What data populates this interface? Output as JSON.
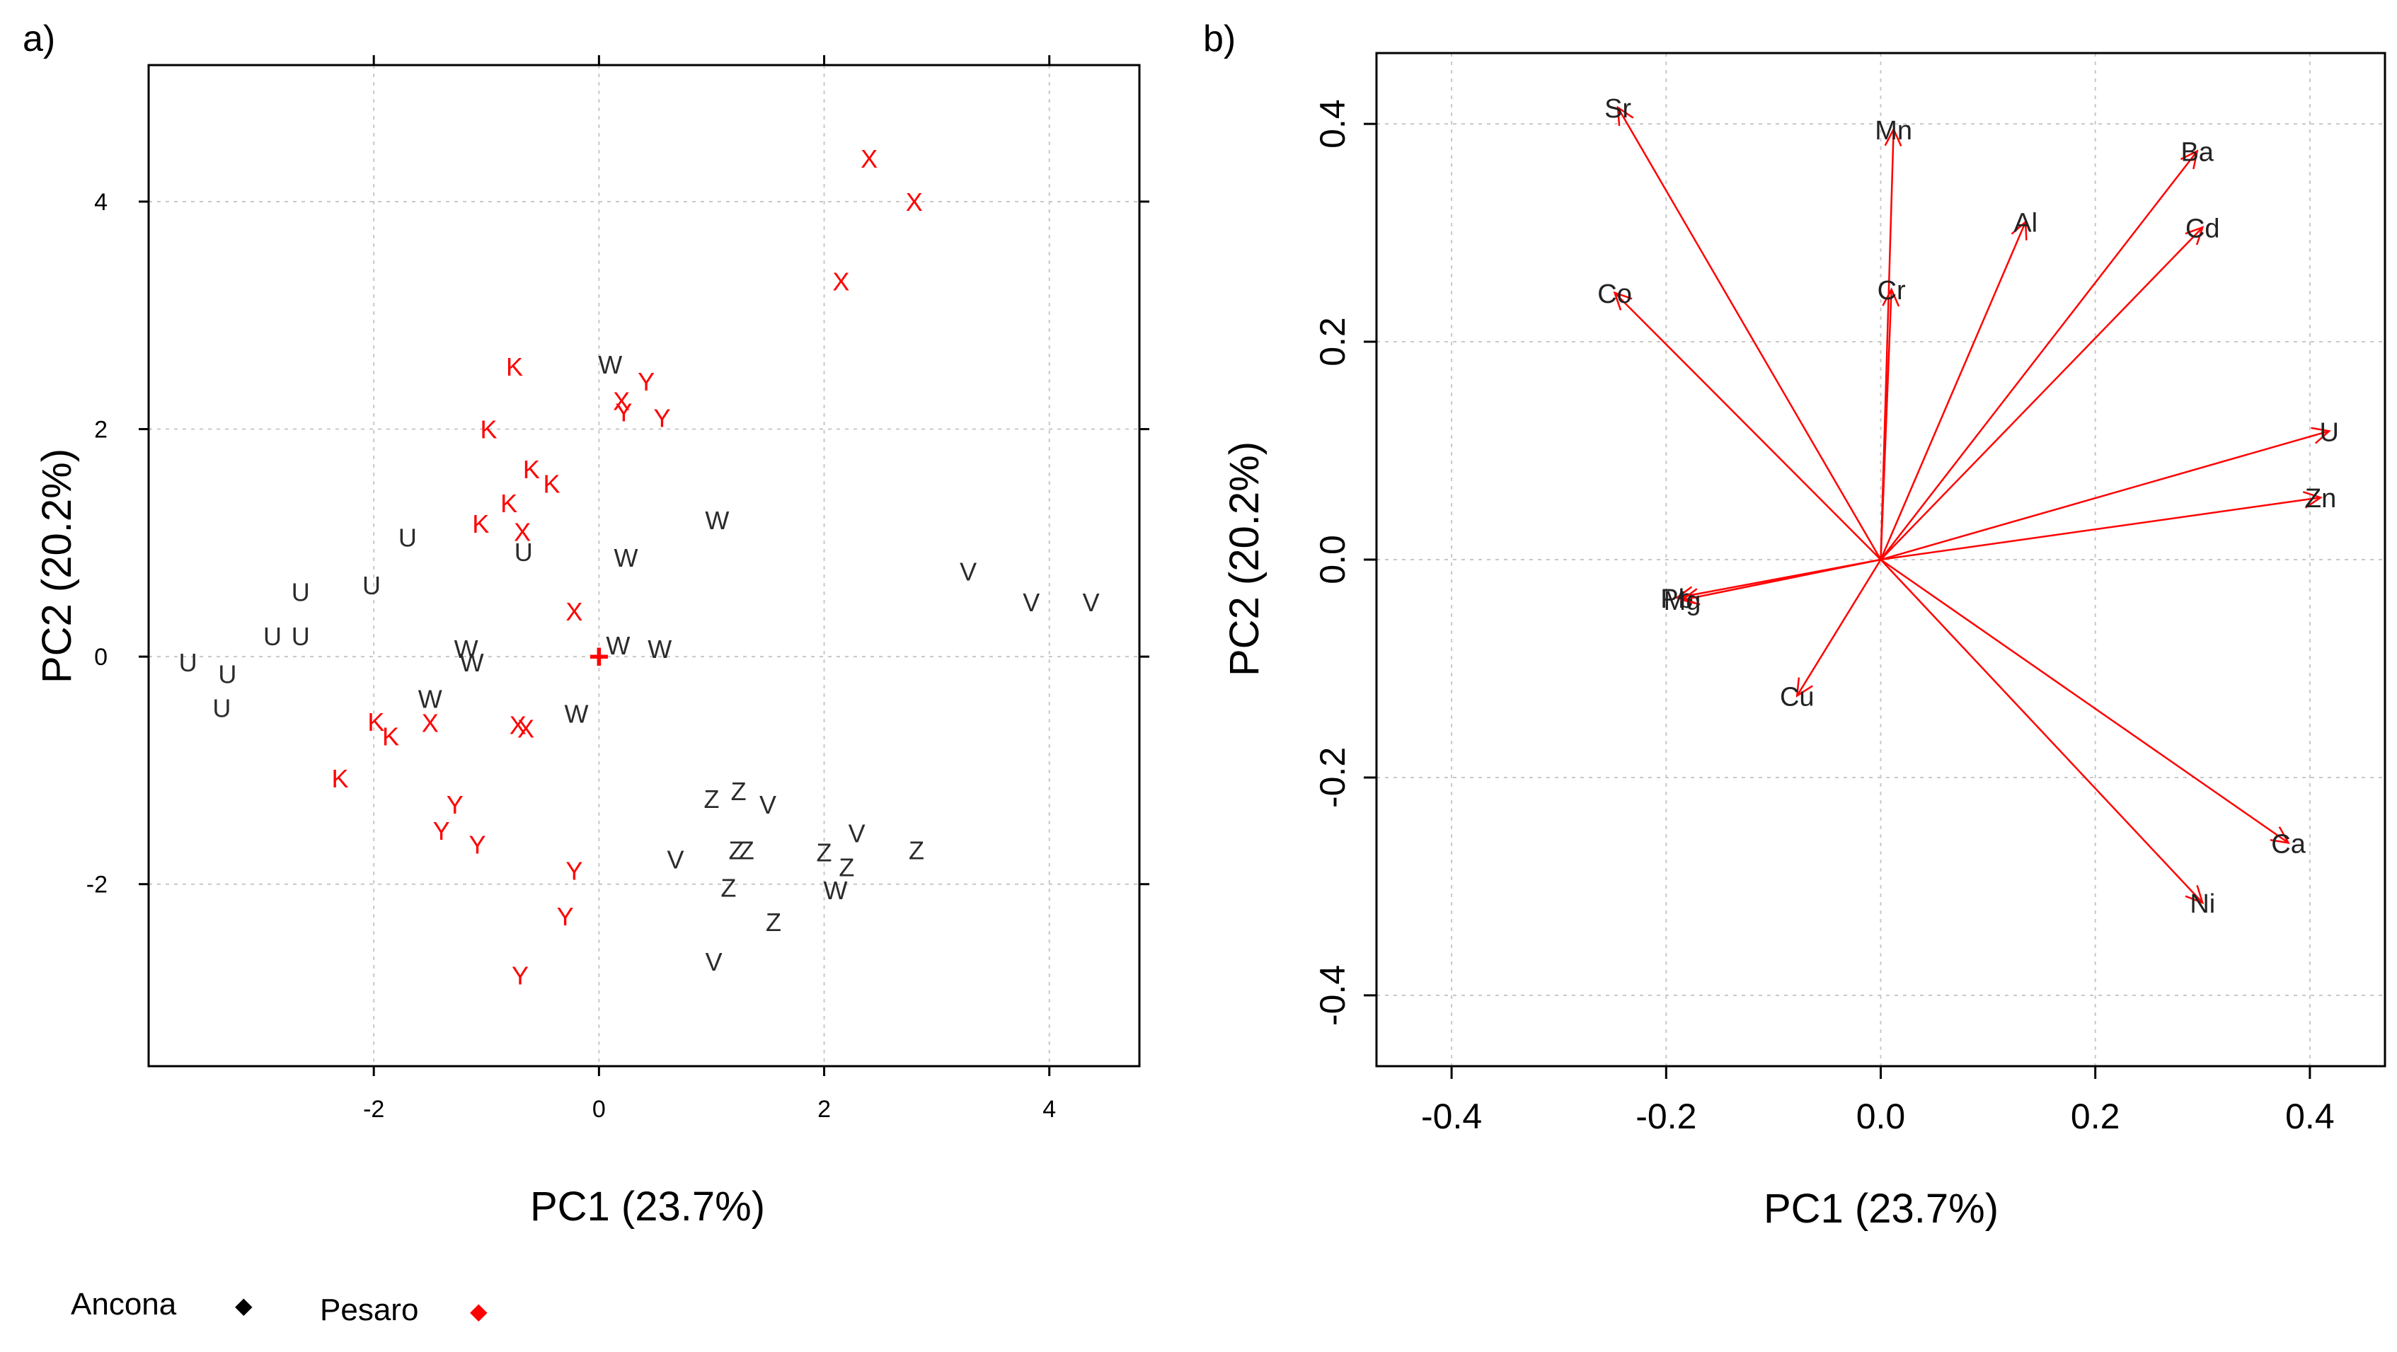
{
  "colors": {
    "ancona": "#2b2b2b",
    "pesaro": "#ff0000",
    "grid": "#c8c8c8",
    "frame": "#000000"
  },
  "legend": {
    "ancona_label": "Ancona",
    "ancona_marker": "◆",
    "pesaro_label": "Pesaro",
    "pesaro_marker": "◆"
  },
  "chart_data": [
    {
      "type": "scatter",
      "panel_label": "a)",
      "xlabel": "PC1 (23.7%)",
      "ylabel": "PC2 (20.2%)",
      "xlim": [
        -4.0,
        4.8
      ],
      "ylim": [
        -3.6,
        5.2
      ],
      "xticks": [
        -2,
        0,
        2,
        4
      ],
      "yticks": [
        -2,
        0,
        2,
        4
      ],
      "grid": true,
      "centroid": {
        "symbol": "+",
        "x": 0.0,
        "y": 0.0,
        "group": "Pesaro"
      },
      "series": [
        {
          "name": "Ancona",
          "points": [
            {
              "label": "U",
              "x": -3.65,
              "y": -0.05
            },
            {
              "label": "U",
              "x": -3.3,
              "y": -0.15
            },
            {
              "label": "U",
              "x": -3.35,
              "y": -0.45
            },
            {
              "label": "U",
              "x": -2.9,
              "y": 0.18
            },
            {
              "label": "U",
              "x": -2.65,
              "y": 0.18
            },
            {
              "label": "U",
              "x": -2.65,
              "y": 0.57
            },
            {
              "label": "U",
              "x": -2.02,
              "y": 0.63
            },
            {
              "label": "U",
              "x": -1.7,
              "y": 1.05
            },
            {
              "label": "U",
              "x": -0.67,
              "y": 0.92
            },
            {
              "label": "W",
              "x": 0.1,
              "y": 2.57
            },
            {
              "label": "W",
              "x": 1.05,
              "y": 1.2
            },
            {
              "label": "W",
              "x": 0.24,
              "y": 0.87
            },
            {
              "label": "W",
              "x": -1.18,
              "y": 0.07
            },
            {
              "label": "W",
              "x": -1.13,
              "y": -0.05
            },
            {
              "label": "W",
              "x": 0.17,
              "y": 0.1
            },
            {
              "label": "W",
              "x": 0.54,
              "y": 0.07
            },
            {
              "label": "W",
              "x": -1.5,
              "y": -0.37
            },
            {
              "label": "W",
              "x": -0.2,
              "y": -0.5
            },
            {
              "label": "W",
              "x": 2.1,
              "y": -2.05
            },
            {
              "label": "V",
              "x": 3.28,
              "y": 0.75
            },
            {
              "label": "V",
              "x": 3.84,
              "y": 0.48
            },
            {
              "label": "V",
              "x": 4.37,
              "y": 0.48
            },
            {
              "label": "V",
              "x": 1.5,
              "y": -1.3
            },
            {
              "label": "V",
              "x": 2.29,
              "y": -1.55
            },
            {
              "label": "V",
              "x": 0.68,
              "y": -1.78
            },
            {
              "label": "V",
              "x": 1.02,
              "y": -2.68
            },
            {
              "label": "Z",
              "x": 1.0,
              "y": -1.25
            },
            {
              "label": "Z",
              "x": 1.24,
              "y": -1.18
            },
            {
              "label": "Z",
              "x": 1.22,
              "y": -1.7
            },
            {
              "label": "Z",
              "x": 1.31,
              "y": -1.7
            },
            {
              "label": "Z",
              "x": 2.0,
              "y": -1.72
            },
            {
              "label": "Z",
              "x": 2.2,
              "y": -1.85
            },
            {
              "label": "Z",
              "x": 2.82,
              "y": -1.7
            },
            {
              "label": "Z",
              "x": 1.15,
              "y": -2.03
            },
            {
              "label": "Z",
              "x": 1.55,
              "y": -2.33
            }
          ]
        },
        {
          "name": "Pesaro",
          "points": [
            {
              "label": "X",
              "x": 2.4,
              "y": 4.38
            },
            {
              "label": "X",
              "x": 2.8,
              "y": 4.0
            },
            {
              "label": "X",
              "x": 2.15,
              "y": 3.3
            },
            {
              "label": "X",
              "x": 0.2,
              "y": 2.25
            },
            {
              "label": "X",
              "x": -0.68,
              "y": 1.1
            },
            {
              "label": "X",
              "x": -0.22,
              "y": 0.4
            },
            {
              "label": "X",
              "x": -1.5,
              "y": -0.58
            },
            {
              "label": "X",
              "x": -0.72,
              "y": -0.6
            },
            {
              "label": "X",
              "x": -0.65,
              "y": -0.63
            },
            {
              "label": "Y",
              "x": 0.42,
              "y": 2.42
            },
            {
              "label": "Y",
              "x": 0.22,
              "y": 2.15
            },
            {
              "label": "Y",
              "x": 0.56,
              "y": 2.1
            },
            {
              "label": "Y",
              "x": -1.28,
              "y": -1.3
            },
            {
              "label": "Y",
              "x": -1.4,
              "y": -1.53
            },
            {
              "label": "Y",
              "x": -1.08,
              "y": -1.65
            },
            {
              "label": "Y",
              "x": -0.22,
              "y": -1.88
            },
            {
              "label": "Y",
              "x": -0.3,
              "y": -2.28
            },
            {
              "label": "Y",
              "x": -0.7,
              "y": -2.8
            },
            {
              "label": "K",
              "x": -0.75,
              "y": 2.55
            },
            {
              "label": "K",
              "x": -0.98,
              "y": 2.0
            },
            {
              "label": "K",
              "x": -0.6,
              "y": 1.65
            },
            {
              "label": "K",
              "x": -0.42,
              "y": 1.52
            },
            {
              "label": "K",
              "x": -0.8,
              "y": 1.35
            },
            {
              "label": "K",
              "x": -1.05,
              "y": 1.17
            },
            {
              "label": "K",
              "x": -1.98,
              "y": -0.57
            },
            {
              "label": "K",
              "x": -1.85,
              "y": -0.7
            },
            {
              "label": "K",
              "x": -2.3,
              "y": -1.07
            }
          ]
        }
      ]
    },
    {
      "type": "biplot",
      "panel_label": "b)",
      "xlabel": "PC1 (23.7%)",
      "ylabel": "PC2 (20.2%)",
      "xlim": [
        -0.47,
        0.47
      ],
      "ylim": [
        -0.465,
        0.465
      ],
      "xticks": [
        -0.4,
        -0.2,
        0.0,
        0.2,
        0.4
      ],
      "xtick_labels": [
        "-0.4",
        "-0.2",
        "0.0",
        "0.2",
        "0.4"
      ],
      "yticks": [
        -0.4,
        -0.2,
        0.0,
        0.2,
        0.4
      ],
      "ytick_labels": [
        "-0.4",
        "-0.2",
        "0.0",
        "0.2",
        "0.4"
      ],
      "grid": true,
      "loadings": [
        {
          "label": "Sr",
          "x": -0.245,
          "y": 0.415
        },
        {
          "label": "Mn",
          "x": 0.012,
          "y": 0.395
        },
        {
          "label": "Ba",
          "x": 0.295,
          "y": 0.375
        },
        {
          "label": "Al",
          "x": 0.135,
          "y": 0.31
        },
        {
          "label": "Cd",
          "x": 0.3,
          "y": 0.305
        },
        {
          "label": "Co",
          "x": -0.248,
          "y": 0.245
        },
        {
          "label": "Cr",
          "x": 0.01,
          "y": 0.248
        },
        {
          "label": "U",
          "x": 0.418,
          "y": 0.118
        },
        {
          "label": "Zn",
          "x": 0.41,
          "y": 0.057
        },
        {
          "label": "Pb",
          "x": -0.19,
          "y": -0.035
        },
        {
          "label": "Mg",
          "x": -0.185,
          "y": -0.037
        },
        {
          "label": "Cu",
          "x": -0.078,
          "y": -0.125
        },
        {
          "label": "Ca",
          "x": 0.38,
          "y": -0.26
        },
        {
          "label": "Ni",
          "x": 0.3,
          "y": -0.315
        }
      ]
    }
  ]
}
